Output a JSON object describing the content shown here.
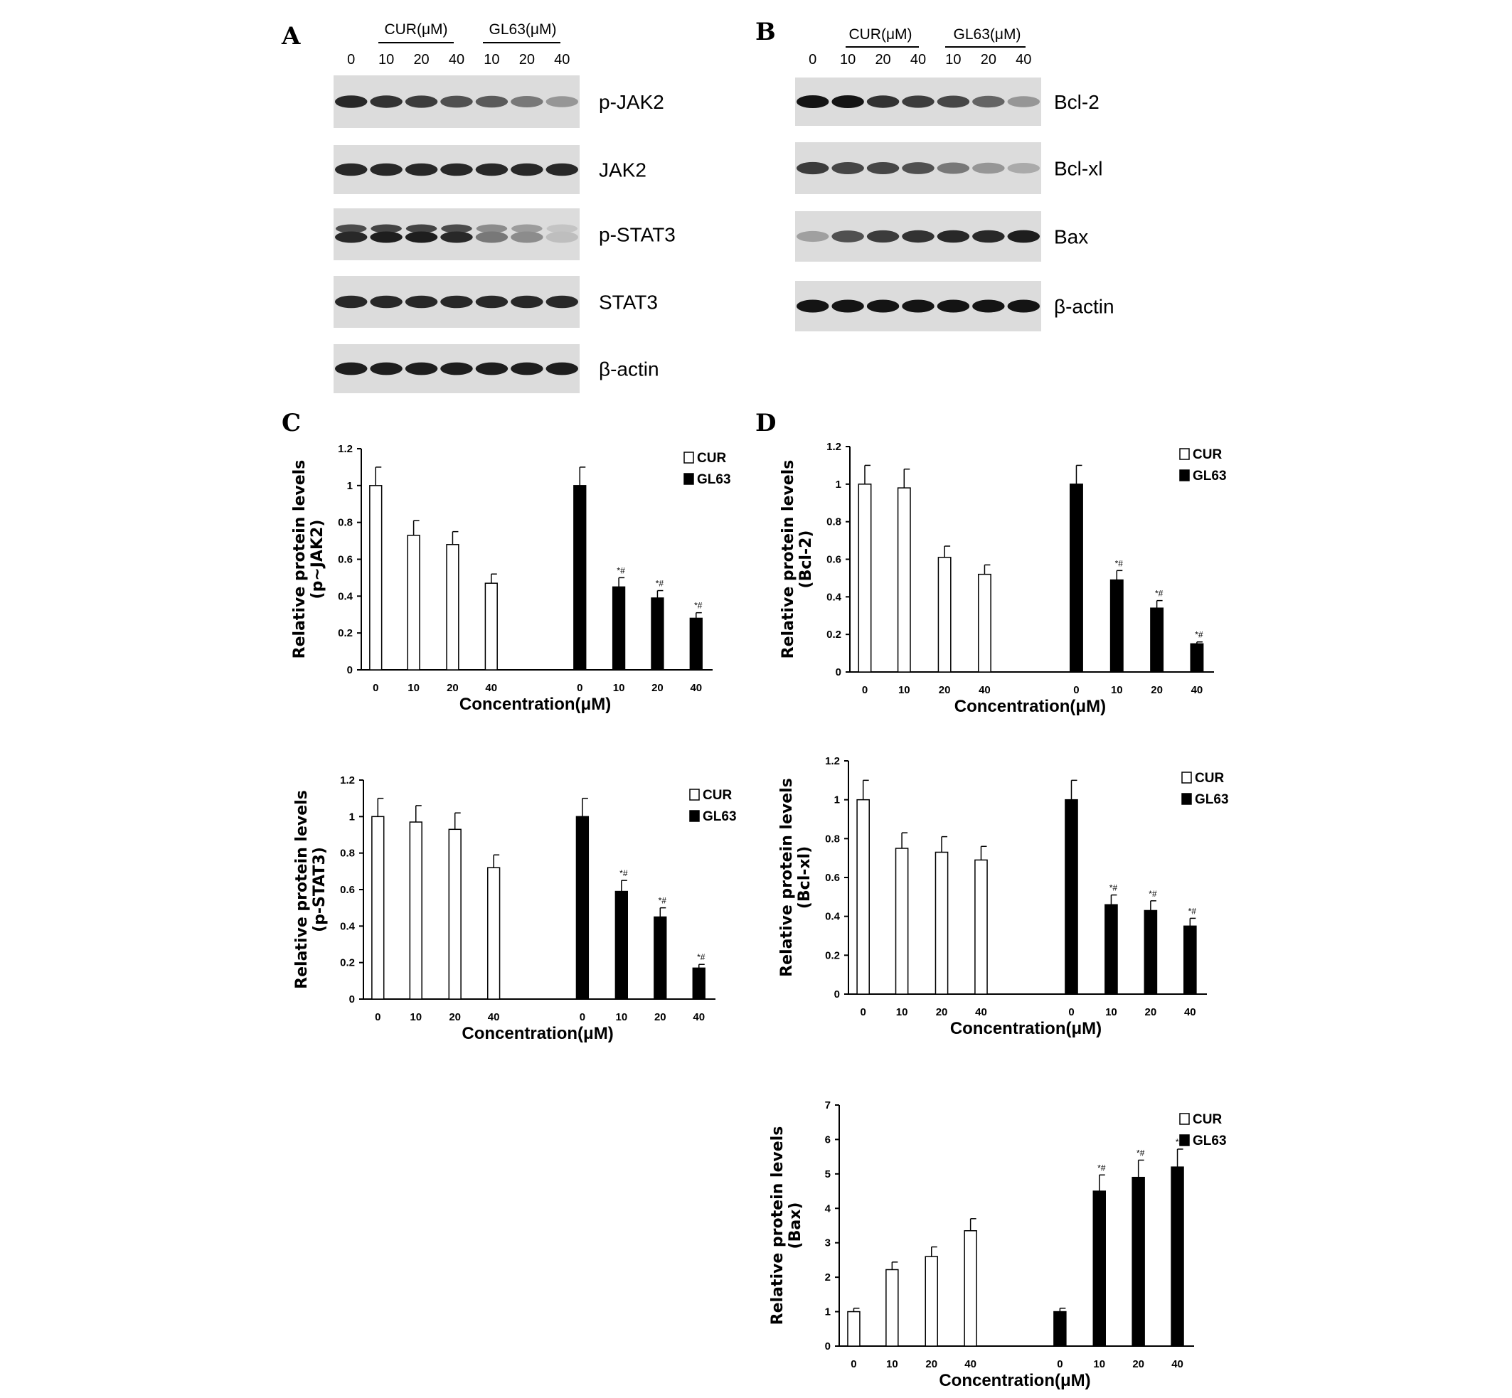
{
  "panels": {
    "a": "A",
    "b": "B",
    "c": "C",
    "d": "D"
  },
  "blot_a": {
    "groups": [
      "CUR(μM)",
      "GL63(μM)"
    ],
    "lanes": [
      "0",
      "10",
      "20",
      "40",
      "10",
      "20",
      "40"
    ],
    "rows": [
      "p-JAK2",
      "JAK2",
      "p-STAT3",
      "STAT3",
      "β-actin"
    ]
  },
  "blot_b": {
    "groups": [
      "CUR(μM)",
      "GL63(μM)"
    ],
    "lanes": [
      "0",
      "10",
      "20",
      "40",
      "10",
      "20",
      "40"
    ],
    "rows": [
      "Bcl-2",
      "Bcl-xl",
      "Bax",
      "β-actin"
    ]
  },
  "chart_data": [
    {
      "type": "bar",
      "panel": "C",
      "ylabel": [
        "Relative protein levels",
        "(p~JAK2)"
      ],
      "xlabel": "Concentration(μM)",
      "ylim": [
        0,
        1.2
      ],
      "yticks": [
        "0",
        "0.2",
        "0.4",
        "0.6",
        "0.8",
        "1",
        "1.2"
      ],
      "grid": false,
      "legend": "top-right",
      "categories": [
        "0",
        "10",
        "20",
        "40"
      ],
      "series": [
        {
          "name": "CUR",
          "color": "#ffffff",
          "values": [
            1.0,
            0.73,
            0.68,
            0.47
          ],
          "errors": [
            0.1,
            0.08,
            0.07,
            0.05
          ],
          "annotations": [
            "",
            "",
            "",
            ""
          ]
        },
        {
          "name": "GL63",
          "color": "#000000",
          "values": [
            1.0,
            0.45,
            0.39,
            0.28
          ],
          "errors": [
            0.1,
            0.05,
            0.04,
            0.03
          ],
          "annotations": [
            "",
            "*#",
            "*#",
            "*#"
          ]
        }
      ]
    },
    {
      "type": "bar",
      "panel": "C",
      "ylabel": [
        "Relative protein levels",
        "(p-STAT3)"
      ],
      "xlabel": "Concentration(μM)",
      "ylim": [
        0,
        1.2
      ],
      "yticks": [
        "0",
        "0.2",
        "0.4",
        "0.6",
        "0.8",
        "1",
        "1.2"
      ],
      "grid": false,
      "legend": "top-right",
      "categories": [
        "0",
        "10",
        "20",
        "40"
      ],
      "series": [
        {
          "name": "CUR",
          "color": "#ffffff",
          "values": [
            1.0,
            0.97,
            0.93,
            0.72
          ],
          "errors": [
            0.1,
            0.09,
            0.09,
            0.07
          ],
          "annotations": [
            "",
            "",
            "",
            ""
          ]
        },
        {
          "name": "GL63",
          "color": "#000000",
          "values": [
            1.0,
            0.59,
            0.45,
            0.17
          ],
          "errors": [
            0.1,
            0.06,
            0.05,
            0.02
          ],
          "annotations": [
            "",
            "*#",
            "*#",
            "*#"
          ]
        }
      ]
    },
    {
      "type": "bar",
      "panel": "D",
      "ylabel": [
        "Relative protein levels",
        "(Bcl-2)"
      ],
      "xlabel": "Concentration(μM)",
      "ylim": [
        0,
        1.2
      ],
      "yticks": [
        "0",
        "0.2",
        "0.4",
        "0.6",
        "0.8",
        "1",
        "1.2"
      ],
      "grid": false,
      "legend": "top-right",
      "categories": [
        "0",
        "10",
        "20",
        "40"
      ],
      "series": [
        {
          "name": "CUR",
          "color": "#ffffff",
          "values": [
            1.0,
            0.98,
            0.61,
            0.52
          ],
          "errors": [
            0.1,
            0.1,
            0.06,
            0.05
          ],
          "annotations": [
            "",
            "",
            "",
            ""
          ]
        },
        {
          "name": "GL63",
          "color": "#000000",
          "values": [
            1.0,
            0.49,
            0.34,
            0.15
          ],
          "errors": [
            0.1,
            0.05,
            0.04,
            0.01
          ],
          "annotations": [
            "",
            "*#",
            "*#",
            "*#"
          ]
        }
      ]
    },
    {
      "type": "bar",
      "panel": "D",
      "ylabel": [
        "Relative protein levels",
        "(Bcl-xl)"
      ],
      "xlabel": "Concentration(μM)",
      "ylim": [
        0,
        1.2
      ],
      "yticks": [
        "0",
        "0.2",
        "0.4",
        "0.6",
        "0.8",
        "1",
        "1.2"
      ],
      "grid": false,
      "legend": "top-right",
      "categories": [
        "0",
        "10",
        "20",
        "40"
      ],
      "series": [
        {
          "name": "CUR",
          "color": "#ffffff",
          "values": [
            1.0,
            0.75,
            0.73,
            0.69
          ],
          "errors": [
            0.1,
            0.08,
            0.08,
            0.07
          ],
          "annotations": [
            "",
            "",
            "",
            ""
          ]
        },
        {
          "name": "GL63",
          "color": "#000000",
          "values": [
            1.0,
            0.46,
            0.43,
            0.35
          ],
          "errors": [
            0.1,
            0.05,
            0.05,
            0.04
          ],
          "annotations": [
            "",
            "*#",
            "*#",
            "*#"
          ]
        }
      ]
    },
    {
      "type": "bar",
      "panel": "D",
      "ylabel": [
        "Relative protein levels",
        "(Bax)"
      ],
      "xlabel": "Concentration(μM)",
      "ylim": [
        0,
        7
      ],
      "yticks": [
        "0",
        "1",
        "2",
        "3",
        "4",
        "5",
        "6",
        "7"
      ],
      "grid": false,
      "legend": "top-right",
      "categories": [
        "0",
        "10",
        "20",
        "40"
      ],
      "series": [
        {
          "name": "CUR",
          "color": "#ffffff",
          "values": [
            1.0,
            2.22,
            2.6,
            3.35
          ],
          "errors": [
            0.1,
            0.22,
            0.28,
            0.35
          ],
          "annotations": [
            "",
            "",
            "",
            ""
          ]
        },
        {
          "name": "GL63",
          "color": "#000000",
          "values": [
            1.0,
            4.5,
            4.9,
            5.2
          ],
          "errors": [
            0.1,
            0.47,
            0.5,
            0.52
          ],
          "annotations": [
            "",
            "*#",
            "*#",
            "*#"
          ]
        }
      ]
    }
  ]
}
